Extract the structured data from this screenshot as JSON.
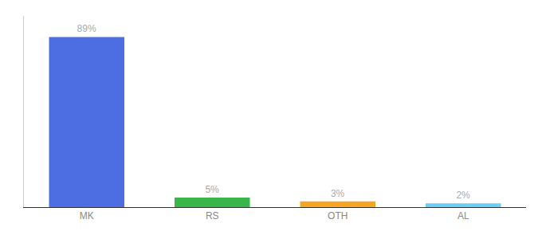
{
  "chart_data": {
    "type": "bar",
    "categories": [
      "MK",
      "RS",
      "OTH",
      "AL"
    ],
    "values": [
      89,
      5,
      3,
      2
    ],
    "value_labels": [
      "89%",
      "5%",
      "3%",
      "2%"
    ],
    "data_labels": true,
    "colors": [
      "#4d6ee3",
      "#3ab54a",
      "#f5a623",
      "#6dcff6"
    ],
    "ylim": [
      0,
      100
    ],
    "grid": false,
    "tick_labels": "x"
  }
}
